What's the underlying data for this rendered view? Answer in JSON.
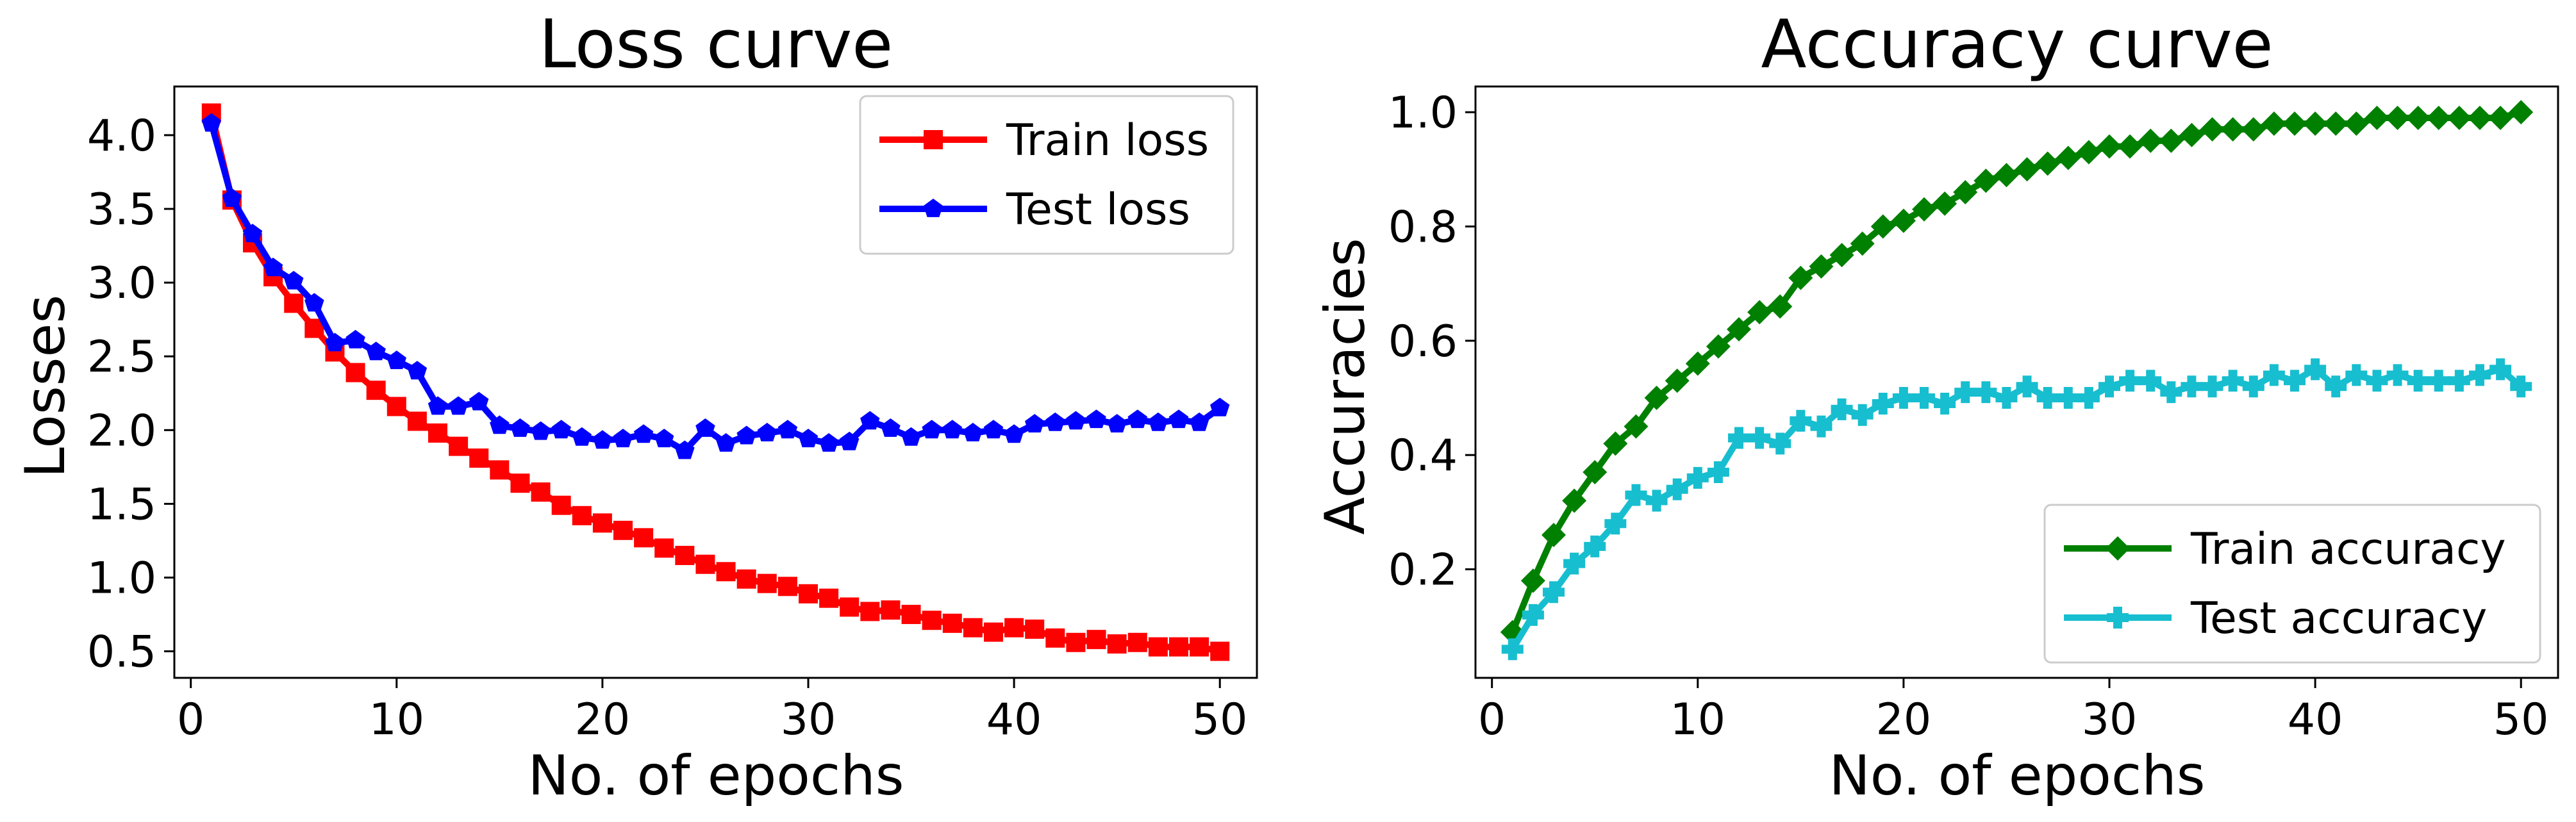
{
  "chart_data": [
    {
      "type": "line",
      "title": "Loss curve",
      "xlabel": "No. of epochs",
      "ylabel": "Losses",
      "xlim": [
        -0.8,
        51.8
      ],
      "ylim": [
        0.32,
        4.33
      ],
      "xticks": [
        0,
        10,
        20,
        30,
        40,
        50
      ],
      "yticks": [
        0.5,
        1.0,
        1.5,
        2.0,
        2.5,
        3.0,
        3.5,
        4.0
      ],
      "ytick_labels": [
        "0.5",
        "1.0",
        "1.5",
        "2.0",
        "2.5",
        "3.0",
        "3.5",
        "4.0"
      ],
      "legend": "top-right",
      "grid": false,
      "x": [
        1,
        2,
        3,
        4,
        5,
        6,
        7,
        8,
        9,
        10,
        11,
        12,
        13,
        14,
        15,
        16,
        17,
        18,
        19,
        20,
        21,
        22,
        23,
        24,
        25,
        26,
        27,
        28,
        29,
        30,
        31,
        32,
        33,
        34,
        35,
        36,
        37,
        38,
        39,
        40,
        41,
        42,
        43,
        44,
        45,
        46,
        47,
        48,
        49,
        50
      ],
      "series": [
        {
          "name": "Train loss",
          "color": "#ff0000",
          "marker": "square",
          "values": [
            4.15,
            3.56,
            3.27,
            3.04,
            2.86,
            2.69,
            2.53,
            2.39,
            2.27,
            2.16,
            2.06,
            1.98,
            1.89,
            1.81,
            1.73,
            1.64,
            1.58,
            1.49,
            1.42,
            1.37,
            1.32,
            1.27,
            1.2,
            1.15,
            1.09,
            1.04,
            0.99,
            0.96,
            0.94,
            0.89,
            0.86,
            0.8,
            0.77,
            0.78,
            0.75,
            0.71,
            0.69,
            0.66,
            0.63,
            0.66,
            0.65,
            0.59,
            0.56,
            0.58,
            0.55,
            0.56,
            0.53,
            0.53,
            0.53,
            0.5
          ]
        },
        {
          "name": "Test loss",
          "color": "#0000ff",
          "marker": "pentagon",
          "values": [
            4.08,
            3.57,
            3.33,
            3.1,
            3.01,
            2.86,
            2.59,
            2.61,
            2.53,
            2.47,
            2.4,
            2.16,
            2.16,
            2.19,
            2.03,
            2.01,
            1.99,
            2.0,
            1.95,
            1.93,
            1.94,
            1.97,
            1.94,
            1.86,
            2.01,
            1.91,
            1.96,
            1.98,
            2.0,
            1.94,
            1.91,
            1.92,
            2.06,
            2.01,
            1.95,
            2.0,
            2.0,
            1.98,
            2.0,
            1.97,
            2.04,
            2.05,
            2.06,
            2.07,
            2.04,
            2.07,
            2.05,
            2.07,
            2.05,
            2.15
          ]
        }
      ]
    },
    {
      "type": "line",
      "title": "Accuracy curve",
      "xlabel": "No. of epochs",
      "ylabel": "Accuracies",
      "xlim": [
        -0.8,
        51.8
      ],
      "ylim": [
        0.01,
        1.045
      ],
      "xticks": [
        0,
        10,
        20,
        30,
        40,
        50
      ],
      "yticks": [
        0.2,
        0.4,
        0.6,
        0.8,
        1.0
      ],
      "ytick_labels": [
        "0.2",
        "0.4",
        "0.6",
        "0.8",
        "1.0"
      ],
      "legend": "bottom-right",
      "grid": false,
      "x": [
        1,
        2,
        3,
        4,
        5,
        6,
        7,
        8,
        9,
        10,
        11,
        12,
        13,
        14,
        15,
        16,
        17,
        18,
        19,
        20,
        21,
        22,
        23,
        24,
        25,
        26,
        27,
        28,
        29,
        30,
        31,
        32,
        33,
        34,
        35,
        36,
        37,
        38,
        39,
        40,
        41,
        42,
        43,
        44,
        45,
        46,
        47,
        48,
        49,
        50
      ],
      "series": [
        {
          "name": "Train accuracy",
          "color": "#008000",
          "marker": "diamond",
          "values": [
            0.09,
            0.18,
            0.26,
            0.32,
            0.37,
            0.42,
            0.45,
            0.5,
            0.53,
            0.56,
            0.59,
            0.62,
            0.65,
            0.66,
            0.71,
            0.73,
            0.75,
            0.77,
            0.8,
            0.81,
            0.83,
            0.84,
            0.86,
            0.88,
            0.89,
            0.9,
            0.91,
            0.92,
            0.93,
            0.94,
            0.94,
            0.95,
            0.95,
            0.96,
            0.97,
            0.97,
            0.97,
            0.98,
            0.98,
            0.98,
            0.98,
            0.98,
            0.99,
            0.99,
            0.99,
            0.99,
            0.99,
            0.99,
            0.99,
            1.0
          ]
        },
        {
          "name": "Test accuracy",
          "color": "#17becf",
          "marker": "plus",
          "values": [
            0.06,
            0.12,
            0.16,
            0.21,
            0.24,
            0.28,
            0.33,
            0.32,
            0.34,
            0.36,
            0.37,
            0.43,
            0.43,
            0.42,
            0.46,
            0.45,
            0.48,
            0.47,
            0.49,
            0.5,
            0.5,
            0.49,
            0.51,
            0.51,
            0.5,
            0.52,
            0.5,
            0.5,
            0.5,
            0.52,
            0.53,
            0.53,
            0.51,
            0.52,
            0.52,
            0.53,
            0.52,
            0.54,
            0.53,
            0.55,
            0.52,
            0.54,
            0.53,
            0.54,
            0.53,
            0.53,
            0.53,
            0.54,
            0.55,
            0.52
          ]
        }
      ]
    }
  ]
}
